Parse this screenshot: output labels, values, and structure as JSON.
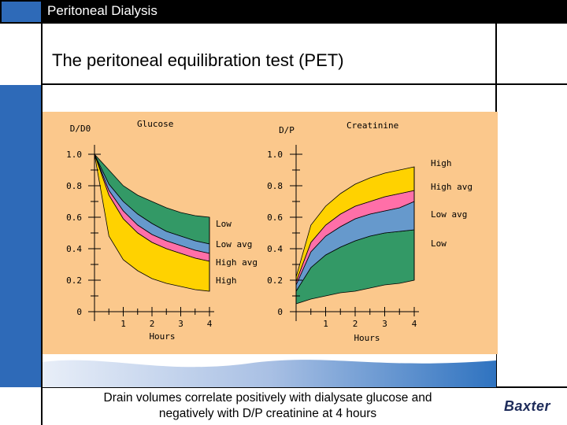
{
  "header": {
    "title": "Peritoneal Dialysis"
  },
  "slide": {
    "heading": "The peritoneal equilibration test (PET)",
    "caption_line1": "Drain volumes correlate positively with dialysate glucose and",
    "caption_line2": "negatively with D/P creatinine at 4 hours",
    "logo": "Baxter"
  },
  "colors": {
    "background": "#fbc88c",
    "high": "#ffd200",
    "high_avg": "#ff6fa8",
    "low_avg": "#6699cc",
    "low": "#339966",
    "accent_blue": "#2e6ab8"
  },
  "chart_data": [
    {
      "type": "area",
      "title": "Glucose",
      "ylabel": "D/D0",
      "xlabel": "Hours",
      "xlim": [
        0,
        4
      ],
      "ylim": [
        0,
        1.0
      ],
      "x_ticks": [
        "1",
        "2",
        "3",
        "4"
      ],
      "y_ticks": [
        "1.0",
        "0.8",
        "0.6",
        "0.4",
        "0.2",
        "0"
      ],
      "x": [
        0,
        0.5,
        1,
        1.5,
        2,
        2.5,
        3,
        3.5,
        4
      ],
      "boundaries": [
        [
          1.0,
          0.9,
          0.8,
          0.74,
          0.7,
          0.66,
          0.63,
          0.61,
          0.6
        ],
        [
          1.0,
          0.81,
          0.7,
          0.62,
          0.56,
          0.51,
          0.48,
          0.45,
          0.43
        ],
        [
          1.0,
          0.77,
          0.64,
          0.55,
          0.49,
          0.45,
          0.42,
          0.39,
          0.37
        ],
        [
          1.0,
          0.74,
          0.59,
          0.5,
          0.44,
          0.4,
          0.37,
          0.34,
          0.32
        ],
        [
          1.0,
          0.48,
          0.33,
          0.26,
          0.21,
          0.18,
          0.16,
          0.14,
          0.13
        ]
      ],
      "bands": [
        {
          "name": "Low",
          "color": "#339966"
        },
        {
          "name": "Low avg",
          "color": "#6699cc"
        },
        {
          "name": "High avg",
          "color": "#ff6fa8"
        },
        {
          "name": "High",
          "color": "#ffd200"
        }
      ],
      "legend": [
        "Low",
        "Low avg",
        "High avg",
        "High"
      ]
    },
    {
      "type": "area",
      "title": "Creatinine",
      "ylabel": "D/P",
      "xlabel": "Hours",
      "xlim": [
        0,
        4
      ],
      "ylim": [
        0,
        1.0
      ],
      "x_ticks": [
        "1",
        "2",
        "3",
        "4"
      ],
      "y_ticks": [
        "1.0",
        "0.8",
        "0.6",
        "0.4",
        "0.2",
        "0"
      ],
      "x": [
        0,
        0.5,
        1,
        1.5,
        2,
        2.5,
        3,
        3.5,
        4
      ],
      "boundaries": [
        [
          0.05,
          0.08,
          0.1,
          0.12,
          0.13,
          0.15,
          0.17,
          0.18,
          0.2
        ],
        [
          0.13,
          0.28,
          0.36,
          0.41,
          0.45,
          0.48,
          0.5,
          0.51,
          0.52
        ],
        [
          0.17,
          0.38,
          0.48,
          0.54,
          0.59,
          0.62,
          0.64,
          0.66,
          0.7
        ],
        [
          0.19,
          0.44,
          0.55,
          0.62,
          0.67,
          0.7,
          0.73,
          0.75,
          0.77
        ],
        [
          0.22,
          0.55,
          0.67,
          0.75,
          0.81,
          0.85,
          0.88,
          0.9,
          0.92
        ]
      ],
      "bands": [
        {
          "name": "Low",
          "color": "#339966"
        },
        {
          "name": "Low avg",
          "color": "#6699cc"
        },
        {
          "name": "High avg",
          "color": "#ff6fa8"
        },
        {
          "name": "High",
          "color": "#ffd200"
        }
      ],
      "legend": [
        "High",
        "High avg",
        "Low avg",
        "Low"
      ]
    }
  ]
}
